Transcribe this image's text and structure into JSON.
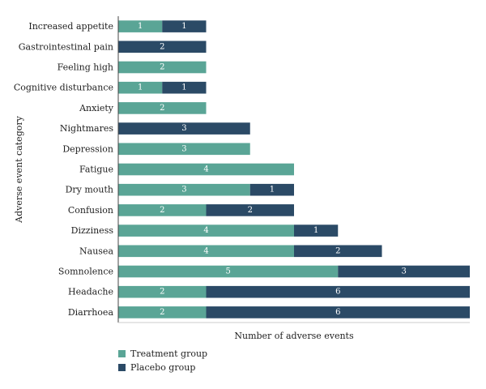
{
  "chart_data": {
    "type": "bar",
    "orientation": "horizontal",
    "stacked": true,
    "xlabel": "Number of adverse events",
    "ylabel": "Adverse event category",
    "xlim": [
      0,
      8
    ],
    "grid": false,
    "legend_position": "bottom-left",
    "categories": [
      "Increased appetite",
      "Gastrointestinal pain",
      "Feeling high",
      "Cognitive disturbance",
      "Anxiety",
      "Nightmares",
      "Depression",
      "Fatigue",
      "Dry mouth",
      "Confusion",
      "Dizziness",
      "Nausea",
      "Somnolence",
      "Headache",
      "Diarrhoea"
    ],
    "series": [
      {
        "name": "Treatment group",
        "color": "#5aa596",
        "values": [
          1,
          0,
          2,
          1,
          2,
          0,
          3,
          4,
          3,
          2,
          4,
          4,
          5,
          2,
          2
        ]
      },
      {
        "name": "Placebo group",
        "color": "#2b4a66",
        "values": [
          1,
          2,
          0,
          1,
          0,
          3,
          0,
          0,
          1,
          2,
          1,
          2,
          3,
          6,
          6
        ]
      }
    ]
  }
}
